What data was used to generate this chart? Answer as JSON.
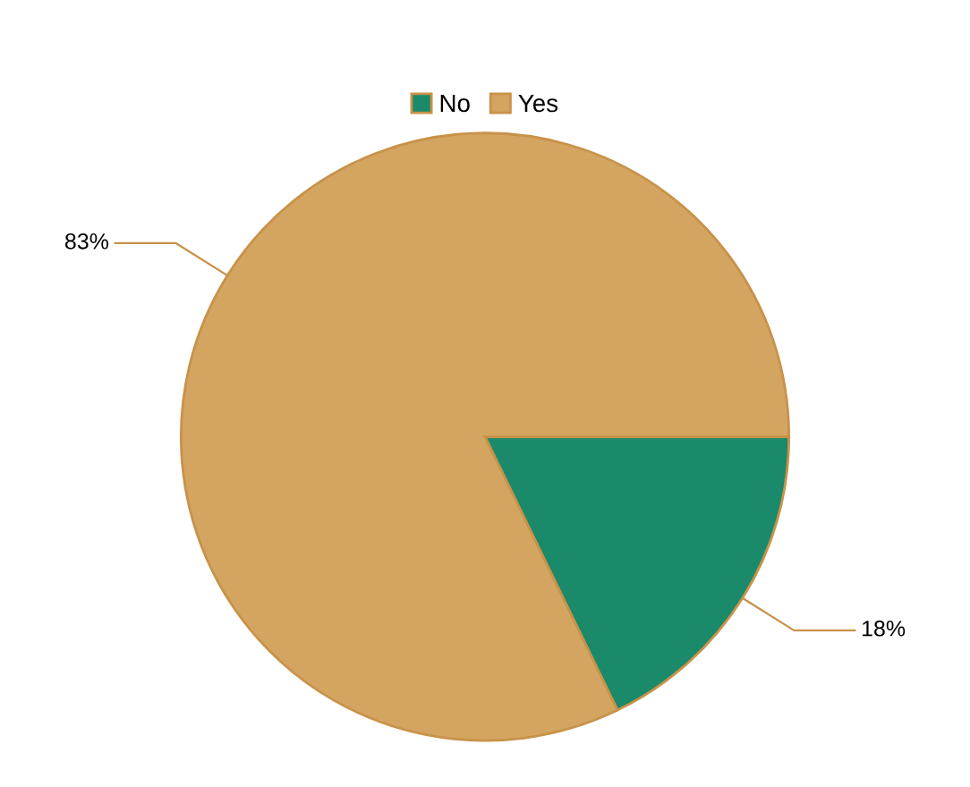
{
  "chart_data": {
    "type": "pie",
    "categories": [
      "No",
      "Yes"
    ],
    "values": [
      18,
      83
    ],
    "colors": [
      "#1a8a6a",
      "#d4a560"
    ],
    "value_labels": [
      "18%",
      "83%"
    ],
    "legend": "top"
  }
}
